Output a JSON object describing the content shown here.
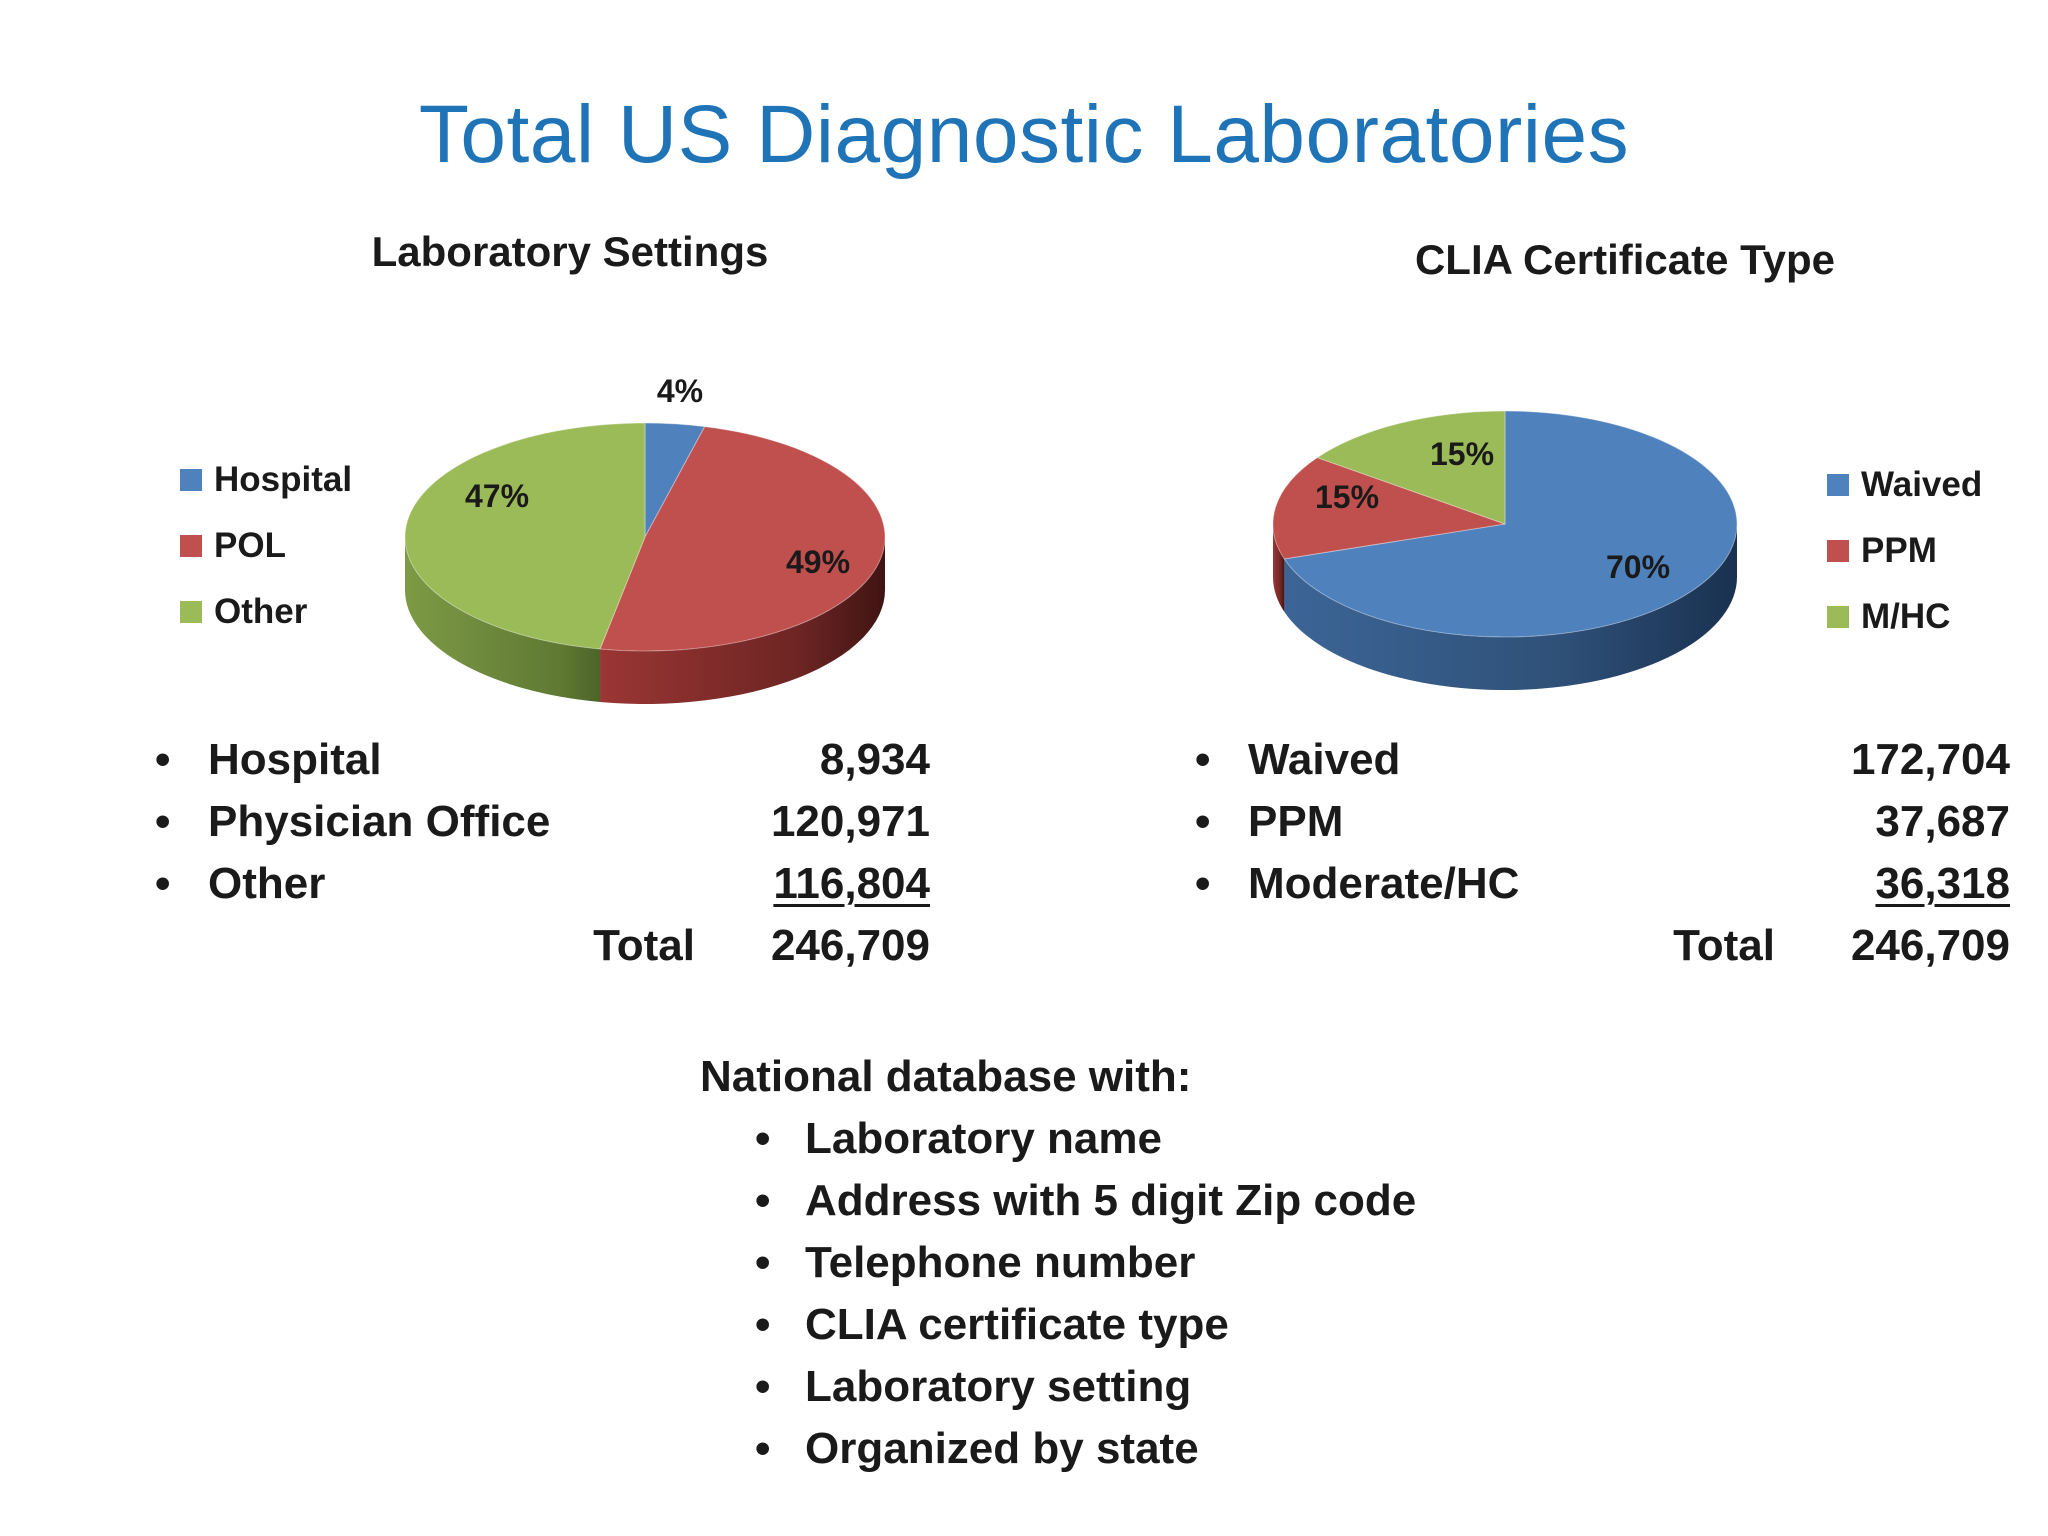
{
  "title": "Total US Diagnostic Laboratories",
  "colors": {
    "blue": "#4f81bd",
    "red": "#c0504d",
    "green": "#9bbb59",
    "title_blue": "#1f73b7"
  },
  "chart_data": [
    {
      "type": "pie",
      "title": "Laboratory Settings",
      "categories": [
        "Hospital",
        "POL",
        "Other"
      ],
      "values": [
        4,
        49,
        47
      ],
      "data_labels": [
        "4%",
        "49%",
        "47%"
      ],
      "legend_position": "left",
      "three_d": true
    },
    {
      "type": "pie",
      "title": "CLIA Certificate Type",
      "categories": [
        "Waived",
        "PPM",
        "M/HC"
      ],
      "values": [
        70,
        15,
        15
      ],
      "data_labels": [
        "70%",
        "15%",
        "15%"
      ],
      "legend_position": "right",
      "three_d": true
    }
  ],
  "left_stats": {
    "rows": [
      {
        "bullet": "•",
        "label": "Hospital",
        "value": "8,934"
      },
      {
        "bullet": "•",
        "label": "Physician Office",
        "value": "120,971"
      },
      {
        "bullet": "•",
        "label": "Other",
        "value": "116,804"
      }
    ],
    "total_label": "Total",
    "total_value": "246,709"
  },
  "right_stats": {
    "rows": [
      {
        "bullet": "•",
        "label": "Waived",
        "value": "172,704"
      },
      {
        "bullet": "•",
        "label": "PPM",
        "value": "37,687"
      },
      {
        "bullet": "•",
        "label": "Moderate/HC",
        "value": "36,318"
      }
    ],
    "total_label": "Total",
    "total_value": "246,709"
  },
  "database": {
    "heading": "National database with:",
    "items": [
      "Laboratory name",
      "Address with 5 digit Zip code",
      "Telephone number",
      "CLIA certificate type",
      "Laboratory setting",
      "Organized by state"
    ]
  }
}
